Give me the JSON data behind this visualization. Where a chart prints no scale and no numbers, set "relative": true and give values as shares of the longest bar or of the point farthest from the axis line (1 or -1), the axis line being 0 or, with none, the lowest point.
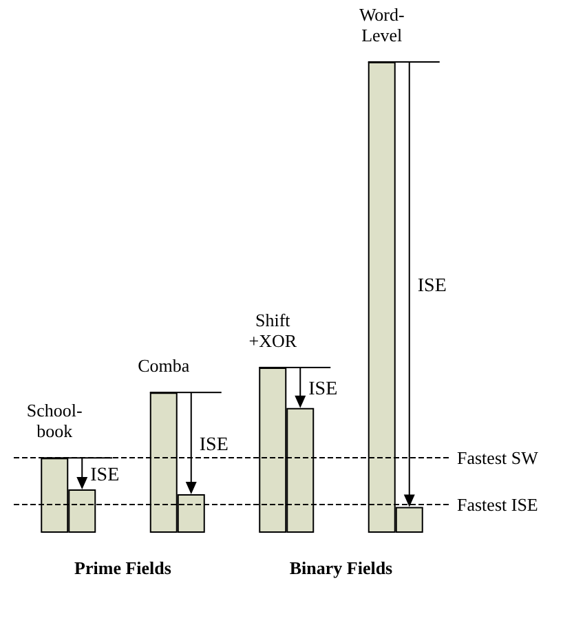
{
  "chart_data": {
    "type": "bar",
    "relative": true,
    "categories": [
      "School-\nbook",
      "Comba",
      "Shift\n+XOR",
      "Word-\nLevel"
    ],
    "series": [
      {
        "color": "#dde0c8",
        "values": [
          0.159,
          0.298,
          0.351,
          1
        ]
      },
      {
        "color": "#dde0c8",
        "values": [
          0.092,
          0.082,
          0.265,
          0.055
        ]
      }
    ],
    "ref_lines": [
      {
        "axis": "y",
        "value": 0.159,
        "label": "Fastest SW",
        "line_style": "dashed"
      },
      {
        "axis": "y",
        "value": 0.055,
        "label": "Fastest ISE",
        "line_style": "dashed"
      }
    ],
    "annotations": [
      "Prime Fields",
      "Binary Fields",
      {
        "text": "ISE",
        "x": "School-\nbook"
      },
      {
        "text": "ISE",
        "x": "Comba"
      },
      {
        "text": "ISE",
        "x": "Shift\n+XOR"
      },
      {
        "text": "ISE",
        "x": "Word-\nLevel"
      }
    ],
    "grid": false
  }
}
